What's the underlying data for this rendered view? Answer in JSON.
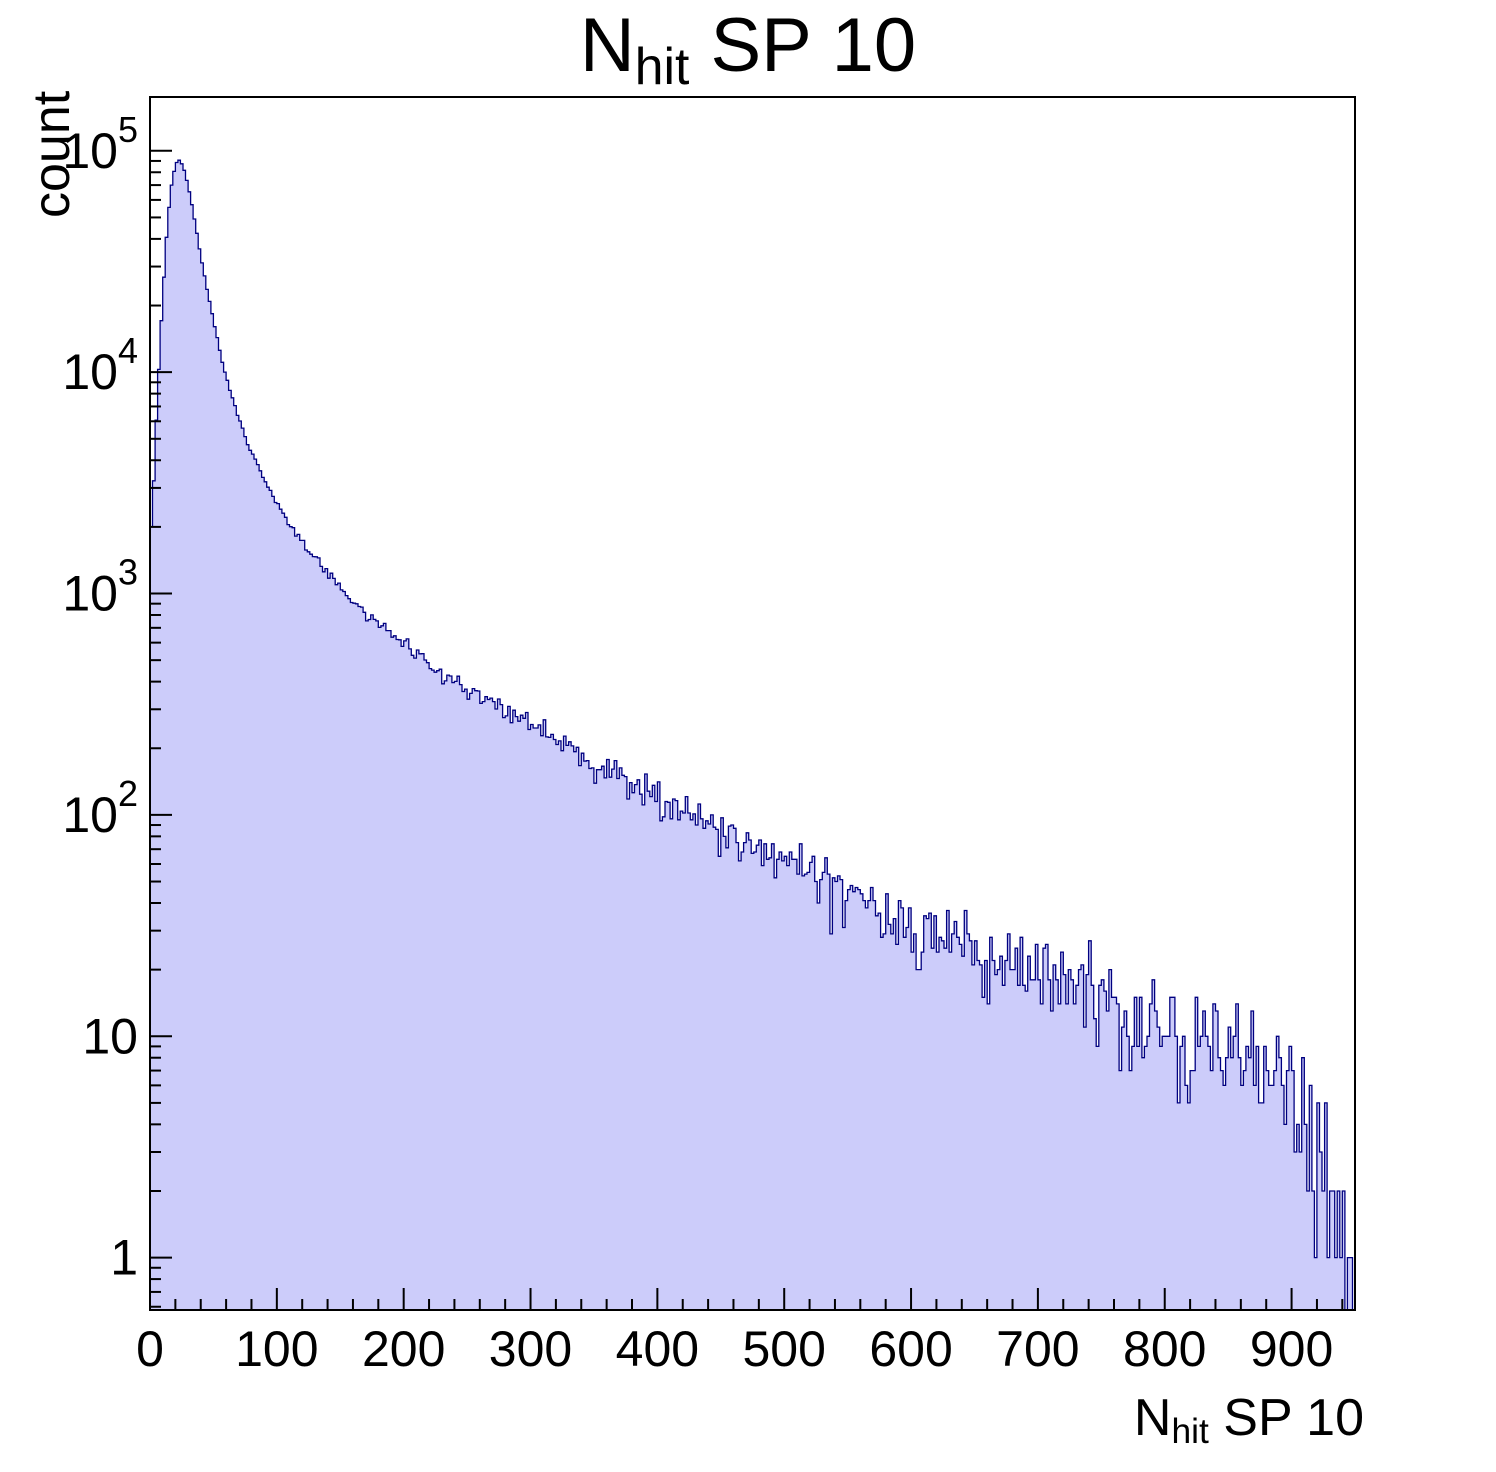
{
  "title": {
    "main": "N",
    "sub": "hit",
    "rest": " SP 10"
  },
  "y_axis_title": "count",
  "x_axis_title": {
    "main": "N",
    "sub": "hit",
    "rest": " SP 10"
  },
  "colors": {
    "fill": "#ccccfa",
    "line": "#000080",
    "axis": "#000000",
    "background": "#ffffff"
  },
  "axes": {
    "x": {
      "ticks": [
        0,
        100,
        200,
        300,
        400,
        500,
        600,
        700,
        800,
        900
      ],
      "tick_labels": [
        "0",
        "100",
        "200",
        "300",
        "400",
        "500",
        "600",
        "700",
        "800",
        "900"
      ],
      "major_step": 100,
      "minor_step": 20,
      "min": 0,
      "max": 950
    },
    "y": {
      "scale": "log",
      "ticks": [
        {
          "exp": 0,
          "base": "1",
          "sup": ""
        },
        {
          "exp": 1,
          "base": "10",
          "sup": ""
        },
        {
          "exp": 2,
          "base": "10",
          "sup": "2"
        },
        {
          "exp": 3,
          "base": "10",
          "sup": "3"
        },
        {
          "exp": 4,
          "base": "10",
          "sup": "4"
        },
        {
          "exp": 5,
          "base": "10",
          "sup": "5"
        }
      ],
      "min": 0.58,
      "max": 175000
    }
  },
  "chart_data": {
    "type": "bar",
    "subtype": "histogram-log-y",
    "title": "N_hit SP 10",
    "xlabel": "N_hit SP 10",
    "ylabel": "count",
    "x_range": [
      0,
      950
    ],
    "bin_width": 2,
    "y_scale": "log",
    "ylim": [
      0.58,
      175000
    ],
    "xlim": [
      0,
      950
    ],
    "grid": false,
    "legend": false,
    "peak": {
      "x": 22,
      "count": 92000
    },
    "anchors_x": [
      0,
      3,
      6,
      10,
      14,
      18,
      22,
      26,
      30,
      36,
      42,
      50,
      58,
      66,
      74,
      82,
      90,
      100,
      110,
      120,
      130,
      140,
      150,
      160,
      170,
      180,
      190,
      200,
      220,
      240,
      260,
      280,
      300,
      320,
      340,
      360,
      380,
      400,
      420,
      440,
      460,
      480,
      500,
      520,
      540,
      560,
      580,
      600,
      620,
      640,
      660,
      680,
      700,
      720,
      740,
      760,
      780,
      800,
      820,
      840,
      860,
      880,
      900,
      915,
      925,
      935,
      945,
      950
    ],
    "anchors_count": [
      1600,
      3200,
      8000,
      22000,
      50000,
      78000,
      92000,
      86000,
      70000,
      46000,
      29000,
      17000,
      10500,
      7200,
      5300,
      4100,
      3300,
      2550,
      2050,
      1700,
      1450,
      1230,
      1070,
      940,
      830,
      740,
      660,
      590,
      480,
      405,
      345,
      295,
      252,
      217,
      188,
      163,
      141,
      122,
      107,
      93,
      81,
      71,
      62,
      55,
      48,
      43,
      38,
      33,
      29,
      26,
      23,
      21,
      19,
      17,
      15,
      13,
      12,
      11,
      10,
      9,
      8,
      7,
      6,
      4.5,
      3,
      1.5,
      0.8,
      0.5
    ],
    "noise_seed": 20240501
  }
}
